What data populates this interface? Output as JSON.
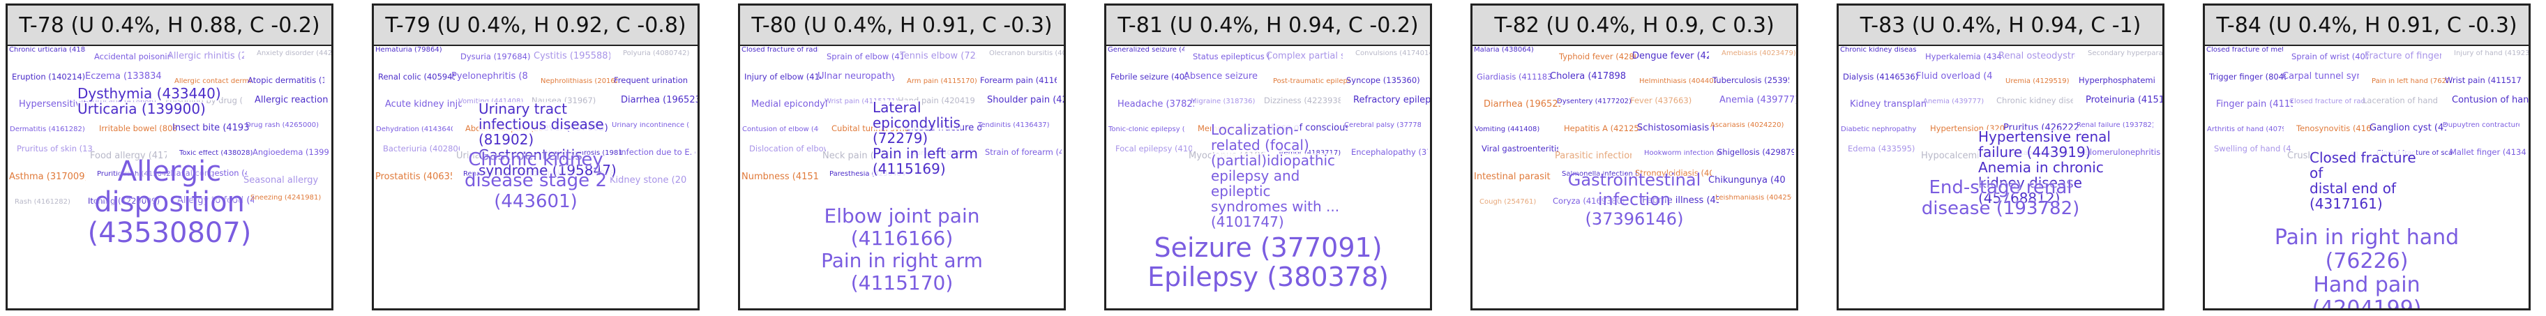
{
  "panels": [
    {
      "title": "T-78 (U 0.4%, H 0.88, C -0.2)",
      "big": [
        "Allergic",
        "disposition",
        "(43530807)"
      ],
      "medium": [
        "Dysthymia (433440)",
        "Urticaria (139900)"
      ],
      "small": [
        "Chronic urticaria (4188600)",
        "Accidental poisoning (4166181)",
        "Allergic rhinitis (257007)",
        "Anxiety disorder (442077)",
        "Eruption (140214)",
        "Eczema (133834)",
        "Allergic contact dermatitis (45766214)",
        "Atopic dermatitis (133834)",
        "Hypersensitivity reaction (4265538)",
        "Urticaria (418686)",
        "Poisoning by drug (438027)",
        "Allergic reaction to drug (4263807)",
        "Dermatitis (4161282)",
        "Irritable bowel (80809)",
        "Insect bite (4193800)",
        "Drug rash (4265000)",
        "Pruritus of skin (135618)",
        "Food allergy (4178987)",
        "Toxic effect (438028)",
        "Angioedema (139900)",
        "Asthma (317009)",
        "Pruritic rash (4158422)",
        "Nasal congestion (4150026)",
        "Seasonal allergy (4048171)",
        "Rash (4161282)",
        "Itching (4220009)",
        "Allergy to food (4048171)",
        "Sneezing (4241981)"
      ]
    },
    {
      "title": "T-79 (U 0.4%, H 0.92, C -0.8)",
      "big": [
        "Chronic kidney",
        "disease stage 2",
        "(443601)"
      ],
      "medium": [
        "Urinary tract",
        "infectious disease",
        "(81902)",
        "Gastroenteritis",
        "syndrome (195847)"
      ],
      "small": [
        "Hematuria (79864)",
        "Dysuria (197684)",
        "Cystitis (195588)",
        "Polyuria (4080742)",
        "Renal colic (4059452)",
        "Pyelonephritis (81902)",
        "Nephrolithiasis (201620)",
        "Frequent urination (4150042)",
        "Acute kidney injury (197320)",
        "Vomiting (441408)",
        "Nausea (31967)",
        "Diarrhea (196523)",
        "Dehydration (4143640)",
        "Abdominal pain (200219)",
        "Fever (437663)",
        "Urinary incontinence (197672)",
        "Bacteriuria (4028069)",
        "Urinary retention (4150029)",
        "Hydronephrosis (198185)",
        "Infection due to E. coli (4080664)",
        "Prostatitis (4063570)",
        "Renal failure (193782)",
        "Hypokalemia (437833)",
        "Kidney stone (201620)"
      ]
    },
    {
      "title": "T-80 (U 0.4%, H 0.91, C -0.3)",
      "big": [
        "Elbow joint pain",
        "(4116166)",
        "Pain in right arm",
        "(4115170)"
      ],
      "medium": [
        "Lateral",
        "epicondylitis",
        "(72279)",
        "Pain in left arm",
        "(4115169)"
      ],
      "small": [
        "Closed fracture of radius (4159823)",
        "Sprain of elbow (4152940)",
        "Tennis elbow (72279)",
        "Olecranon bursitis (4084152)",
        "Injury of elbow (4146195)",
        "Ulnar neuropathy (4179298)",
        "Arm pain (4115170)",
        "Forearm pain (4116171)",
        "Medial epicondylitis (4084153)",
        "Wrist pain (4115171)",
        "Hand pain (4204199)",
        "Shoulder pain (4213162)",
        "Contusion of elbow (4084220)",
        "Cubital tunnel syndrome (4176632)",
        "Closed fracture of humerus (4287230)",
        "Tendinitis (4136437)",
        "Dislocation of elbow (4184460)",
        "Neck pain (24134)",
        "Bursitis (4084152)",
        "Strain of forearm (4146232)",
        "Numbness (4151416)",
        "Paresthesia (4236484)"
      ]
    },
    {
      "title": "T-81 (U 0.4%, H 0.94, C -0.2)",
      "big": [
        "Seizure (377091)",
        "Epilepsy (380378)"
      ],
      "medium": [
        "Localization-",
        "related (focal)",
        "(partial)idiopathic",
        "epilepsy and",
        "epileptic",
        "syndromes with ...",
        "(4101747)"
      ],
      "small": [
        "Generalized seizure (4029498)",
        "Status epilepticus (4029495)",
        "Complex partial seizure (4098295)",
        "Convulsions (4174014)",
        "Febrile seizure (4030099)",
        "Absence seizure (4029498)",
        "Post-traumatic epilepsy (4111830)",
        "Syncope (135360)",
        "Headache (378253)",
        "Migraine (318736)",
        "Dizziness (4223938)",
        "Refractory epilepsy (4106391)",
        "Tonic-clonic epilepsy (4029498)",
        "Memory impairment (4001336)",
        "Loss of consciousness (4223938)",
        "Cerebral palsy (377788)",
        "Focal epilepsy (4101747)",
        "Myoclonus (4196636)",
        "Tremor (4183717)",
        "Encephalopathy (372892)"
      ]
    },
    {
      "title": "T-82 (U 0.4%, H 0.9, C 0.3)",
      "big": [
        "Gastrointestinal",
        "infection",
        "(37396146)"
      ],
      "medium": [],
      "small": [
        "Malaria (438064)",
        "Typhoid fever (4286203)",
        "Dengue fever (4269851)",
        "Amebiasis (4023479)",
        "Giardiasis (4111831)",
        "Cholera (4178981)",
        "Helminthiasis (4044022)",
        "Tuberculosis (253954)",
        "Diarrhea (196523)",
        "Dysentery (4177202)",
        "Fever (437663)",
        "Anemia (439777)",
        "Vomiting (441408)",
        "Hepatitis A (4212541)",
        "Schistosomiasis (4046347)",
        "Ascariasis (4024220)",
        "Viral gastroenteritis (4083667)",
        "Parasitic infection (432545)",
        "Hookworm infection (4024238)",
        "Shigellosis (4298795)",
        "Intestinal parasitism (4024219)",
        "Salmonella infection (4194234)",
        "Strongyloidiasis (4023238)",
        "Chikungunya (4093440)",
        "Cough (254761)",
        "Coryza (4169380)",
        "Febrile illness (437663)",
        "Leishmaniasis (4042502)"
      ]
    },
    {
      "title": "T-83 (U 0.4%, H 0.94, C -1)",
      "big": [
        "End-stage renal",
        "disease (193782)"
      ],
      "medium": [
        "Hypertensive renal",
        "failure (443919)",
        "Anemia in chronic",
        "kidney disease",
        "(45768812)"
      ],
      "small": [
        "Chronic kidney disease stage 5 (443611)",
        "Hyperkalemia (434610)",
        "Renal osteodystrophy (4030518)",
        "Secondary hyperparathyroidism (4193862)",
        "Dialysis (4146536)",
        "Fluid overload (4115387)",
        "Uremia (4129519)",
        "Hyperphosphatemia (4305849)",
        "Kidney transplant (4322471)",
        "Anemia (439777)",
        "Chronic kidney disease (46271022)",
        "Proteinuria (4151171)",
        "Diabetic nephropathy (192279)",
        "Hypertension (320128)",
        "Pruritus (4262226)",
        "Renal failure (193782)",
        "Edema (433595)",
        "Hypocalcemia (439389)",
        "Metabolic acidosis (436081)",
        "Glomerulonephritis (261071)"
      ]
    },
    {
      "title": "T-84 (U 0.4%, H 0.91, C -0.3)",
      "big": [
        "Pain in right hand",
        "(76226)",
        "Hand pain",
        "(4204199)"
      ],
      "medium": [
        "Closed fracture",
        "of",
        "distal end of",
        "(4317161)"
      ],
      "small": [
        "Closed fracture of metacarpal bone (4157296)",
        "Sprain of wrist (4078393)",
        "Fracture of finger (4273541)",
        "Injury of hand (4192360)",
        "Trigger finger (80492)",
        "Carpal tunnel syndrome (380094)",
        "Pain in left hand (76225)",
        "Wrist pain (4115171)",
        "Finger pain (4115168)",
        "Closed fracture of radius (4159823)",
        "Laceration of hand (4144423)",
        "Contusion of hand (4083990)",
        "Arthritis of hand (4079746)",
        "Tenosynovitis (4167391)",
        "Ganglion cyst (4178429)",
        "Dupuytren contracture (4119132)",
        "Swelling of hand (4207906)",
        "Crush injury (4195046)",
        "Closed fracture of scaphoid (4059180)",
        "Mallet finger (4134121)"
      ]
    }
  ],
  "colors": {
    "dark_purple": "#4b2cc9",
    "mid_purple": "#7a5ce0",
    "light_purple": "#a894e8",
    "faded": "#b8b8c8",
    "orange": "#e07a3a",
    "pale_orange": "#e6a77a"
  }
}
